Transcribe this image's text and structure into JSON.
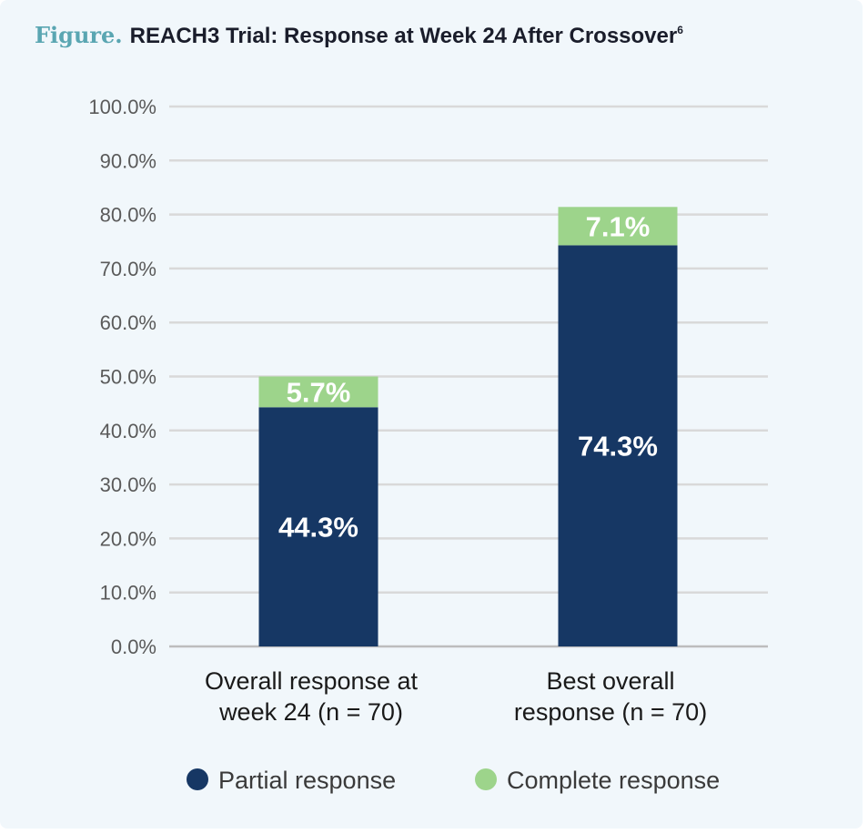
{
  "figure_label": "Figure.",
  "title_text": "REACH3 Trial: Response at Week 24 After Crossover",
  "title_superscript": "6",
  "chart_data": {
    "type": "bar",
    "stacked": true,
    "title": "REACH3 Trial: Response at Week 24 After Crossover",
    "categories": [
      [
        "Overall response at",
        "week 24 (n = 70)"
      ],
      [
        "Best overall",
        "response (n = 70)"
      ]
    ],
    "series": [
      {
        "name": "Partial response",
        "color": "#163764",
        "values": [
          44.3,
          74.3
        ],
        "labels": [
          "44.3%",
          "74.3%"
        ]
      },
      {
        "name": "Complete response",
        "color": "#9dd48b",
        "values": [
          5.7,
          7.1
        ],
        "labels": [
          "5.7%",
          "7.1%"
        ]
      }
    ],
    "yticks": [
      "0.0%",
      "10.0%",
      "20.0%",
      "30.0%",
      "40.0%",
      "50.0%",
      "60.0%",
      "70.0%",
      "80.0%",
      "90.0%",
      "100.0%"
    ],
    "ylim": [
      0,
      100
    ],
    "xlabel": "",
    "ylabel": "",
    "grid": true,
    "gridline_color": "#d9d9d9",
    "legend_position": "bottom"
  }
}
